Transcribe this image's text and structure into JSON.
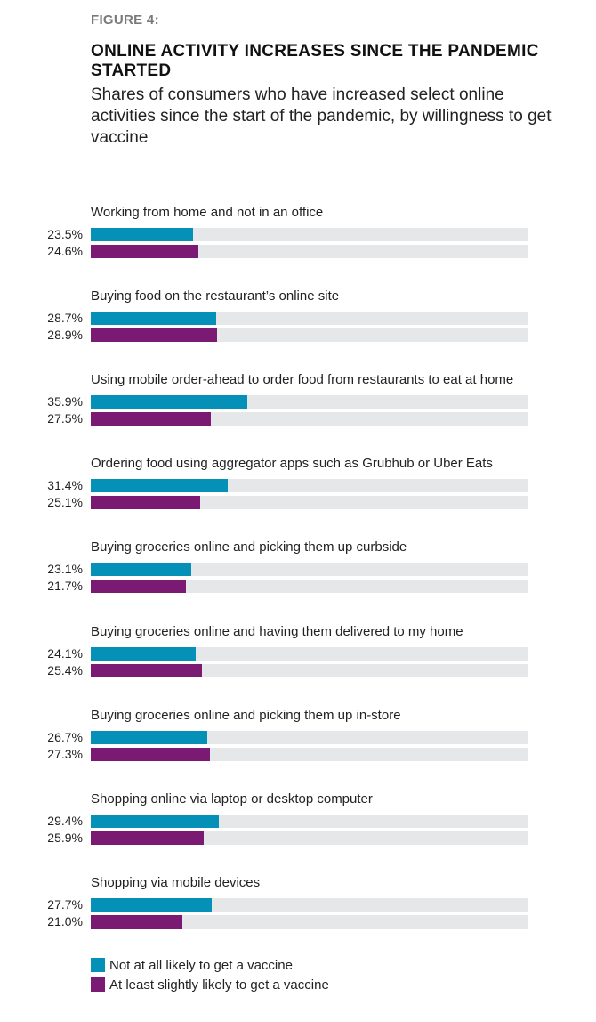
{
  "figure_label": "FIGURE 4:",
  "colors": {
    "series_0": "#0590b8",
    "series_1": "#7a1a72",
    "track": "#e6e7e9"
  },
  "chart_data": {
    "type": "bar",
    "orientation": "horizontal",
    "title": "ONLINE ACTIVITY INCREASES SINCE THE PANDEMIC STARTED",
    "subtitle": "Shares of consumers who have increased select online activities since the start of the pandemic, by willingness to get vaccine",
    "xlim": [
      0,
      100
    ],
    "unit": "%",
    "legend_position": "bottom-left",
    "categories": [
      "Working from home and not in an office",
      "Buying food on the restaurant’s online site",
      "Using mobile order-ahead to order food from restaurants to eat at home",
      "Ordering food using aggregator apps such as Grubhub or Uber Eats",
      "Buying groceries online and picking them up curbside",
      "Buying groceries online and having them delivered to my home",
      "Buying groceries online and picking them up in-store",
      "Shopping online via laptop or desktop computer",
      "Shopping via mobile devices"
    ],
    "series": [
      {
        "name": "Not at all likely to get a vaccine",
        "values": [
          23.5,
          28.7,
          35.9,
          31.4,
          23.1,
          24.1,
          26.7,
          29.4,
          27.7
        ],
        "labels": [
          "23.5%",
          "28.7%",
          "35.9%",
          "31.4%",
          "23.1%",
          "24.1%",
          "26.7%",
          "29.4%",
          "27.7%"
        ]
      },
      {
        "name": "At least slightly likely to get a vaccine",
        "values": [
          24.6,
          28.9,
          27.5,
          25.1,
          21.7,
          25.4,
          27.3,
          25.9,
          21.0
        ],
        "labels": [
          "24.6%",
          "28.9%",
          "27.5%",
          "25.1%",
          "21.7%",
          "25.4%",
          "27.3%",
          "25.9%",
          "21.0%"
        ]
      }
    ]
  }
}
